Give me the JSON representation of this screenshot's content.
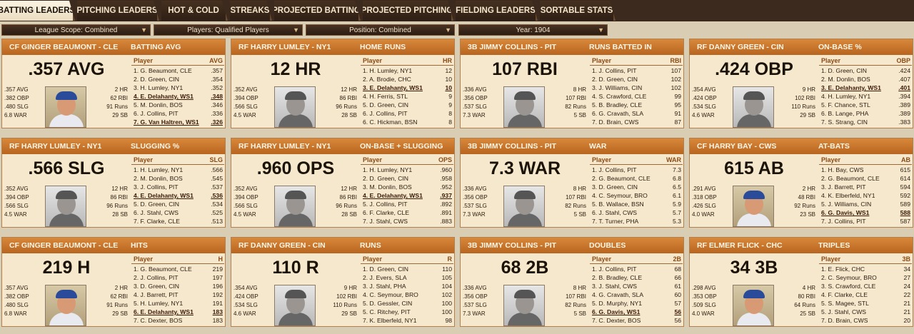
{
  "tabs": [
    "BATTING LEADERS",
    "PITCHING LEADERS",
    "HOT & COLD",
    "STREAKS",
    "PROJECTED BATTING",
    "PROJECTED PITCHING",
    "FIELDING LEADERS",
    "SORTABLE STATS"
  ],
  "filters": [
    "League Scope: Combined",
    "Players: Qualified Players",
    "Position: Combined",
    "Year: 1904"
  ],
  "cards": [
    {
      "player": "CF GINGER BEAUMONT - CLE",
      "stat": "BATTING AVG",
      "big": ".357 AVG",
      "photo": "color",
      "left": [
        ".357 AVG",
        ".382 OBP",
        ".480 SLG",
        "6.8 WAR"
      ],
      "right": [
        "2 HR",
        "62 RBI",
        "91 Runs",
        "29 SB"
      ],
      "col": "AVG",
      "rows": [
        [
          "1. G. Beaumont, CLE",
          ".357"
        ],
        [
          "2. D. Green, CIN",
          ".354"
        ],
        [
          "3. H. Lumley, NY1",
          ".352"
        ],
        [
          "4. E. Delahanty, WS1",
          ".348",
          1
        ],
        [
          "5. M. Donlin, BOS",
          ".346"
        ],
        [
          "6. J. Collins, PIT",
          ".336"
        ],
        [
          "7. G. Van Haltren, WS1",
          ".326",
          1
        ]
      ]
    },
    {
      "player": "RF HARRY LUMLEY - NY1",
      "stat": "HOME RUNS",
      "big": "12 HR",
      "photo": "bw",
      "left": [
        ".352 AVG",
        ".394 OBP",
        ".566 SLG",
        "4.5 WAR"
      ],
      "right": [
        "12 HR",
        "86 RBI",
        "96 Runs",
        "28 SB"
      ],
      "col": "HR",
      "rows": [
        [
          "1. H. Lumley, NY1",
          "12"
        ],
        [
          "2. A. Brodie, CHC",
          "10"
        ],
        [
          "3. E. Delahanty, WS1",
          "10",
          1
        ],
        [
          "4. H. Ferris, STL",
          "9"
        ],
        [
          "5. D. Green, CIN",
          "9"
        ],
        [
          "6. J. Collins, PIT",
          "8"
        ],
        [
          "6. C. Hickman, BSN",
          "8"
        ]
      ]
    },
    {
      "player": "3B JIMMY COLLINS - PIT",
      "stat": "RUNS BATTED IN",
      "big": "107 RBI",
      "photo": "bw",
      "left": [
        ".336 AVG",
        ".356 OBP",
        ".537 SLG",
        "7.3 WAR"
      ],
      "right": [
        "8 HR",
        "107 RBI",
        "82 Runs",
        "5 SB"
      ],
      "col": "RBI",
      "rows": [
        [
          "1. J. Collins, PIT",
          "107"
        ],
        [
          "2. D. Green, CIN",
          "102"
        ],
        [
          "3. J. Williams, CIN",
          "102"
        ],
        [
          "4. S. Crawford, CLE",
          "99"
        ],
        [
          "5. B. Bradley, CLE",
          "95"
        ],
        [
          "6. G. Cravath, SLA",
          "91"
        ],
        [
          "7. D. Brain, CWS",
          "87"
        ]
      ]
    },
    {
      "player": "RF DANNY GREEN - CIN",
      "stat": "ON-BASE %",
      "big": ".424 OBP",
      "photo": "bw",
      "left": [
        ".354 AVG",
        ".424 OBP",
        ".534 SLG",
        "4.6 WAR"
      ],
      "right": [
        "9 HR",
        "102 RBI",
        "110 Runs",
        "29 SB"
      ],
      "col": "OBP",
      "rows": [
        [
          "1. D. Green, CIN",
          ".424"
        ],
        [
          "2. M. Donlin, BOS",
          ".407"
        ],
        [
          "3. E. Delahanty, WS1",
          ".401",
          1
        ],
        [
          "4. H. Lumley, NY1",
          ".394"
        ],
        [
          "5. F. Chance, STL",
          ".389"
        ],
        [
          "6. B. Lange, PHA",
          ".389"
        ],
        [
          "7. S. Strang, CIN",
          ".383"
        ]
      ]
    },
    {
      "player": "RF HARRY LUMLEY - NY1",
      "stat": "SLUGGING %",
      "big": ".566 SLG",
      "photo": "bw",
      "left": [
        ".352 AVG",
        ".394 OBP",
        ".566 SLG",
        "4.5 WAR"
      ],
      "right": [
        "12 HR",
        "86 RBI",
        "96 Runs",
        "28 SB"
      ],
      "col": "SLG",
      "rows": [
        [
          "1. H. Lumley, NY1",
          ".566"
        ],
        [
          "2. M. Donlin, BOS",
          ".545"
        ],
        [
          "3. J. Collins, PIT",
          ".537"
        ],
        [
          "4. E. Delahanty, WS1",
          ".536",
          1
        ],
        [
          "5. D. Green, CIN",
          ".534"
        ],
        [
          "6. J. Stahl, CWS",
          ".525"
        ],
        [
          "7. F. Clarke, CLE",
          ".513"
        ]
      ]
    },
    {
      "player": "RF HARRY LUMLEY - NY1",
      "stat": "ON-BASE + SLUGGING",
      "big": ".960 OPS",
      "photo": "bw",
      "left": [
        ".352 AVG",
        ".394 OBP",
        ".566 SLG",
        "4.5 WAR"
      ],
      "right": [
        "12 HR",
        "86 RBI",
        "96 Runs",
        "28 SB"
      ],
      "col": "OPS",
      "rows": [
        [
          "1. H. Lumley, NY1",
          ".960"
        ],
        [
          "2. D. Green, CIN",
          ".958"
        ],
        [
          "3. M. Donlin, BOS",
          ".952"
        ],
        [
          "4. E. Delahanty, WS1",
          ".937",
          1
        ],
        [
          "5. J. Collins, PIT",
          ".892"
        ],
        [
          "6. F. Clarke, CLE",
          ".891"
        ],
        [
          "7. J. Stahl, CWS",
          ".883"
        ]
      ]
    },
    {
      "player": "3B JIMMY COLLINS - PIT",
      "stat": "WAR",
      "big": "7.3 WAR",
      "photo": "bw",
      "left": [
        ".336 AVG",
        ".356 OBP",
        ".537 SLG",
        "7.3 WAR"
      ],
      "right": [
        "8 HR",
        "107 RBI",
        "82 Runs",
        "5 SB"
      ],
      "col": "WAR",
      "rows": [
        [
          "1. J. Collins, PIT",
          "7.3"
        ],
        [
          "2. G. Beaumont, CLE",
          "6.8"
        ],
        [
          "3. D. Green, CIN",
          "6.5"
        ],
        [
          "4. C. Seymour, BRO",
          "6.1"
        ],
        [
          "5. B. Wallace, BSN",
          "5.9"
        ],
        [
          "6. J. Stahl, CWS",
          "5.7"
        ],
        [
          "7. T. Turner, PHA",
          "5.3"
        ]
      ]
    },
    {
      "player": "CF HARRY BAY - CWS",
      "stat": "AT-BATS",
      "big": "615 AB",
      "photo": "color",
      "left": [
        ".291 AVG",
        ".318 OBP",
        ".426 SLG",
        "4.0 WAR"
      ],
      "right": [
        "2 HR",
        "48 RBI",
        "92 Runs",
        "23 SB"
      ],
      "col": "AB",
      "rows": [
        [
          "1. H. Bay, CWS",
          "615"
        ],
        [
          "2. G. Beaumont, CLE",
          "614"
        ],
        [
          "3. J. Barrett, PIT",
          "594"
        ],
        [
          "4. K. Elberfeld, NY1",
          "592"
        ],
        [
          "5. J. Williams, CIN",
          "589"
        ],
        [
          "6. G. Davis, WS1",
          "588",
          1
        ],
        [
          "7. J. Collins, PIT",
          "587"
        ]
      ]
    },
    {
      "player": "CF GINGER BEAUMONT - CLE",
      "stat": "HITS",
      "big": "219 H",
      "photo": "color",
      "left": [
        ".357 AVG",
        ".382 OBP",
        ".480 SLG",
        "6.8 WAR"
      ],
      "right": [
        "2 HR",
        "62 RBI",
        "91 Runs",
        "29 SB"
      ],
      "col": "H",
      "rows": [
        [
          "1. G. Beaumont, CLE",
          "219"
        ],
        [
          "2. J. Collins, PIT",
          "197"
        ],
        [
          "3. D. Green, CIN",
          "196"
        ],
        [
          "4. J. Barrett, PIT",
          "192"
        ],
        [
          "5. H. Lumley, NY1",
          "191"
        ],
        [
          "6. E. Delahanty, WS1",
          "183",
          1
        ],
        [
          "7. C. Dexter, BOS",
          "183"
        ]
      ]
    },
    {
      "player": "RF DANNY GREEN - CIN",
      "stat": "RUNS",
      "big": "110 R",
      "photo": "bw",
      "left": [
        ".354 AVG",
        ".424 OBP",
        ".534 SLG",
        "4.6 WAR"
      ],
      "right": [
        "9 HR",
        "102 RBI",
        "110 Runs",
        "29 SB"
      ],
      "col": "R",
      "rows": [
        [
          "1. D. Green, CIN",
          "110"
        ],
        [
          "2. J. Evers, SLA",
          "105"
        ],
        [
          "3. J. Stahl, PHA",
          "104"
        ],
        [
          "4. C. Seymour, BRO",
          "102"
        ],
        [
          "5. D. Gessler, CIN",
          "100"
        ],
        [
          "5. C. Ritchey, PIT",
          "100"
        ],
        [
          "7. K. Elberfeld, NY1",
          "98"
        ]
      ]
    },
    {
      "player": "3B JIMMY COLLINS - PIT",
      "stat": "DOUBLES",
      "big": "68 2B",
      "photo": "bw",
      "left": [
        ".336 AVG",
        ".356 OBP",
        ".537 SLG",
        "7.3 WAR"
      ],
      "right": [
        "8 HR",
        "107 RBI",
        "82 Runs",
        "5 SB"
      ],
      "col": "2B",
      "rows": [
        [
          "1. J. Collins, PIT",
          "68"
        ],
        [
          "2. B. Bradley, CLE",
          "66"
        ],
        [
          "3. J. Stahl, CWS",
          "61"
        ],
        [
          "4. G. Cravath, SLA",
          "60"
        ],
        [
          "5. D. Murphy, NY1",
          "57"
        ],
        [
          "6. G. Davis, WS1",
          "56",
          1
        ],
        [
          "7. C. Dexter, BOS",
          "56"
        ]
      ]
    },
    {
      "player": "RF ELMER FLICK - CHC",
      "stat": "TRIPLES",
      "big": "34 3B",
      "photo": "color",
      "left": [
        ".298 AVG",
        ".353 OBP",
        ".509 SLG",
        "4.0 WAR"
      ],
      "right": [
        "4 HR",
        "80 RBI",
        "64 Runs",
        "25 SB"
      ],
      "col": "3B",
      "rows": [
        [
          "1. E. Flick, CHC",
          "34"
        ],
        [
          "2. C. Seymour, BRO",
          "27"
        ],
        [
          "3. S. Crawford, CLE",
          "24"
        ],
        [
          "4. F. Clarke, CLE",
          "22"
        ],
        [
          "5. S. Magee, STL",
          "21"
        ],
        [
          "5. J. Stahl, CWS",
          "21"
        ],
        [
          "7. D. Brain, CWS",
          "20"
        ]
      ]
    }
  ]
}
